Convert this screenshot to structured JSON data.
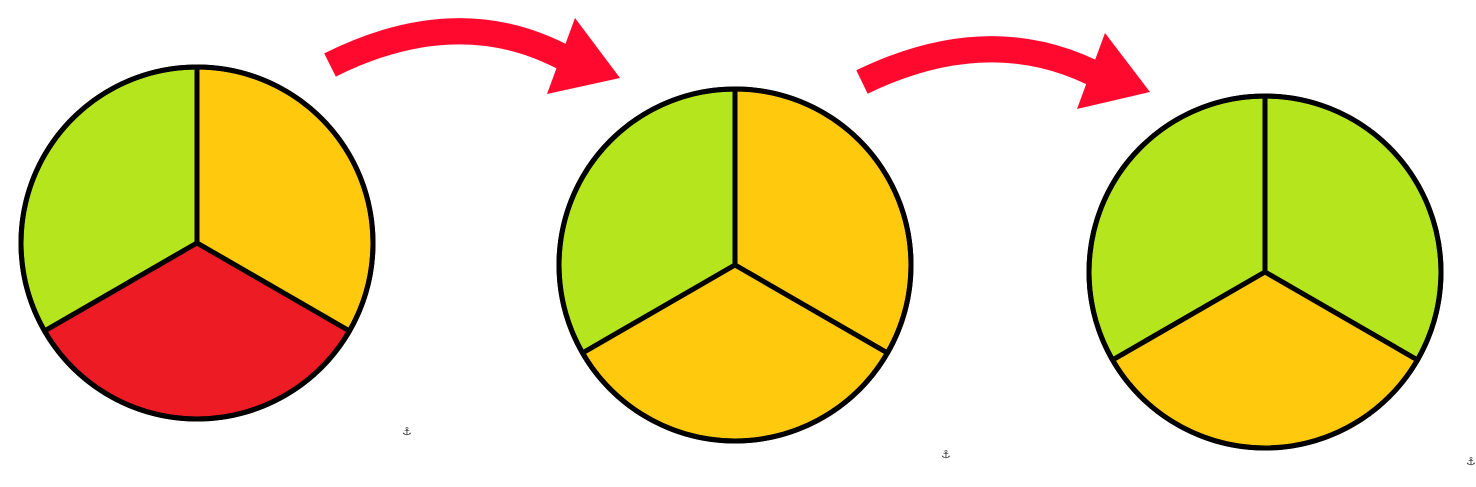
{
  "colors": {
    "green": "#b5e61d",
    "yellow": "#ffc90e",
    "red": "#ed1c24",
    "arrow": "#ff0a2e",
    "outline": "#000000"
  },
  "stages": [
    {
      "name": "stage-1",
      "segments": [
        "green",
        "yellow",
        "red"
      ]
    },
    {
      "name": "stage-2",
      "segments": [
        "green",
        "yellow",
        "yellow"
      ]
    },
    {
      "name": "stage-3",
      "segments": [
        "green",
        "green",
        "yellow"
      ]
    }
  ],
  "arrows": [
    {
      "name": "arrow-1-to-2",
      "icon": "curved-arrow-right"
    },
    {
      "name": "arrow-2-to-3",
      "icon": "curved-arrow-right"
    }
  ],
  "anchors": [
    {
      "name": "anchor-icon-1",
      "icon": "anchor-icon"
    },
    {
      "name": "anchor-icon-2",
      "icon": "anchor-icon"
    },
    {
      "name": "anchor-icon-3",
      "icon": "anchor-icon"
    }
  ]
}
